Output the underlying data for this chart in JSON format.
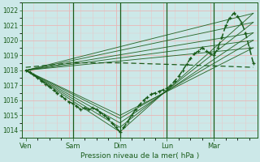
{
  "xlabel": "Pression niveau de la mer( hPa )",
  "bg_color": "#cce8e8",
  "grid_color_major": "#e8b8b8",
  "grid_color_minor": "#e8c8c8",
  "line_color": "#1a5c1a",
  "ylim": [
    1013.5,
    1022.5
  ],
  "yticks": [
    1014,
    1015,
    1016,
    1017,
    1018,
    1019,
    1020,
    1021,
    1022
  ],
  "day_labels": [
    "Ven",
    "Sam",
    "Dim",
    "Lun",
    "Mar"
  ],
  "day_positions": [
    0,
    24,
    48,
    72,
    96
  ],
  "xlim": [
    -2,
    118
  ],
  "actual_line": [
    [
      0,
      1018.0
    ],
    [
      2,
      1017.9
    ],
    [
      4,
      1017.7
    ],
    [
      6,
      1017.5
    ],
    [
      8,
      1017.3
    ],
    [
      10,
      1017.1
    ],
    [
      12,
      1016.9
    ],
    [
      14,
      1016.7
    ],
    [
      16,
      1016.5
    ],
    [
      18,
      1016.3
    ],
    [
      20,
      1016.1
    ],
    [
      22,
      1015.9
    ],
    [
      24,
      1015.8
    ],
    [
      26,
      1015.6
    ],
    [
      28,
      1015.4
    ],
    [
      30,
      1015.5
    ],
    [
      32,
      1015.4
    ],
    [
      34,
      1015.5
    ],
    [
      36,
      1015.4
    ],
    [
      38,
      1015.2
    ],
    [
      40,
      1015.0
    ],
    [
      42,
      1014.8
    ],
    [
      44,
      1014.5
    ],
    [
      46,
      1014.2
    ],
    [
      48,
      1013.9
    ],
    [
      50,
      1014.2
    ],
    [
      52,
      1014.6
    ],
    [
      54,
      1015.0
    ],
    [
      56,
      1015.4
    ],
    [
      58,
      1015.7
    ],
    [
      60,
      1016.0
    ],
    [
      62,
      1016.2
    ],
    [
      64,
      1016.4
    ],
    [
      66,
      1016.5
    ],
    [
      68,
      1016.6
    ],
    [
      70,
      1016.7
    ],
    [
      72,
      1016.8
    ],
    [
      74,
      1017.0
    ],
    [
      76,
      1017.3
    ],
    [
      78,
      1017.6
    ],
    [
      80,
      1018.0
    ],
    [
      82,
      1018.4
    ],
    [
      84,
      1018.8
    ],
    [
      86,
      1019.1
    ],
    [
      88,
      1019.3
    ],
    [
      90,
      1019.5
    ],
    [
      92,
      1019.3
    ],
    [
      94,
      1019.1
    ],
    [
      96,
      1019.0
    ],
    [
      98,
      1019.5
    ],
    [
      100,
      1020.2
    ],
    [
      102,
      1021.0
    ],
    [
      104,
      1021.5
    ],
    [
      106,
      1021.8
    ],
    [
      108,
      1021.6
    ],
    [
      110,
      1021.2
    ],
    [
      112,
      1020.5
    ],
    [
      114,
      1019.5
    ],
    [
      116,
      1018.5
    ]
  ],
  "forecast_lines": [
    [
      [
        0,
        1018.0
      ],
      [
        116,
        1021.8
      ]
    ],
    [
      [
        0,
        1018.0
      ],
      [
        116,
        1021.2
      ]
    ],
    [
      [
        0,
        1018.0
      ],
      [
        116,
        1020.5
      ]
    ],
    [
      [
        0,
        1018.0
      ],
      [
        116,
        1020.0
      ]
    ],
    [
      [
        0,
        1018.0
      ],
      [
        116,
        1019.5
      ]
    ],
    [
      [
        0,
        1018.0
      ],
      [
        48,
        1013.9
      ],
      [
        116,
        1021.8
      ]
    ],
    [
      [
        0,
        1018.0
      ],
      [
        48,
        1014.2
      ],
      [
        116,
        1021.2
      ]
    ],
    [
      [
        0,
        1018.0
      ],
      [
        48,
        1014.5
      ],
      [
        116,
        1020.5
      ]
    ],
    [
      [
        0,
        1018.0
      ],
      [
        48,
        1014.8
      ],
      [
        116,
        1020.0
      ]
    ],
    [
      [
        0,
        1018.0
      ],
      [
        48,
        1015.0
      ],
      [
        116,
        1019.5
      ]
    ]
  ],
  "dashed_line": [
    [
      0,
      1018.2
    ],
    [
      24,
      1018.5
    ],
    [
      48,
      1018.5
    ],
    [
      72,
      1018.4
    ],
    [
      96,
      1018.3
    ],
    [
      116,
      1018.2
    ]
  ]
}
